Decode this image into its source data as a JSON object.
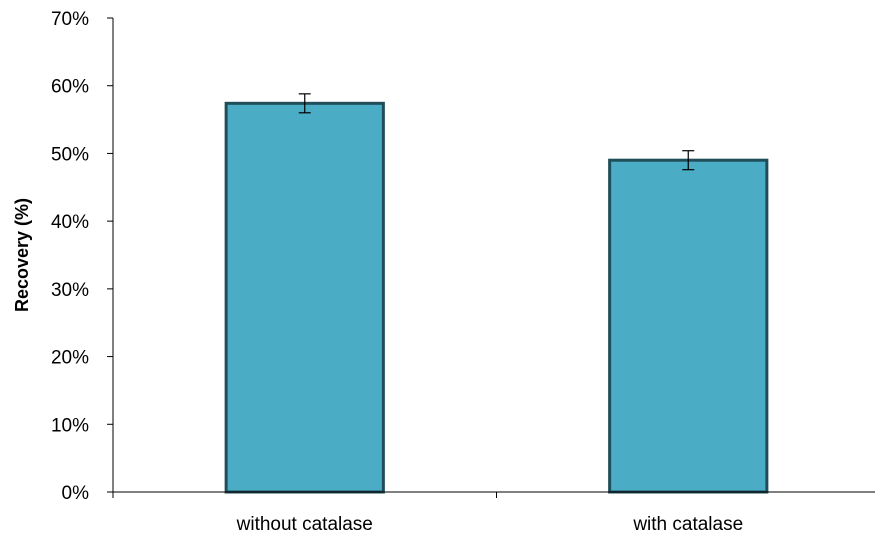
{
  "chart_data": {
    "type": "bar",
    "title": "",
    "xlabel": "",
    "ylabel": "Recovery (%)",
    "categories": [
      "without catalase",
      "with catalase"
    ],
    "values": [
      0.574,
      0.49
    ],
    "errors": [
      0.014,
      0.014
    ],
    "ylim": [
      0,
      0.7
    ],
    "yticks": [
      0,
      0.1,
      0.2,
      0.3,
      0.4,
      0.5,
      0.6,
      0.7
    ],
    "ytick_labels": [
      "0%",
      "10%",
      "20%",
      "30%",
      "40%",
      "50%",
      "60%",
      "70%"
    ],
    "grid": false,
    "legend": "none",
    "colors": {
      "bar_fill": "#4bacc6",
      "bar_stroke": "#1f4e5a",
      "axis": "#000000",
      "error_bar": "#000000"
    }
  }
}
